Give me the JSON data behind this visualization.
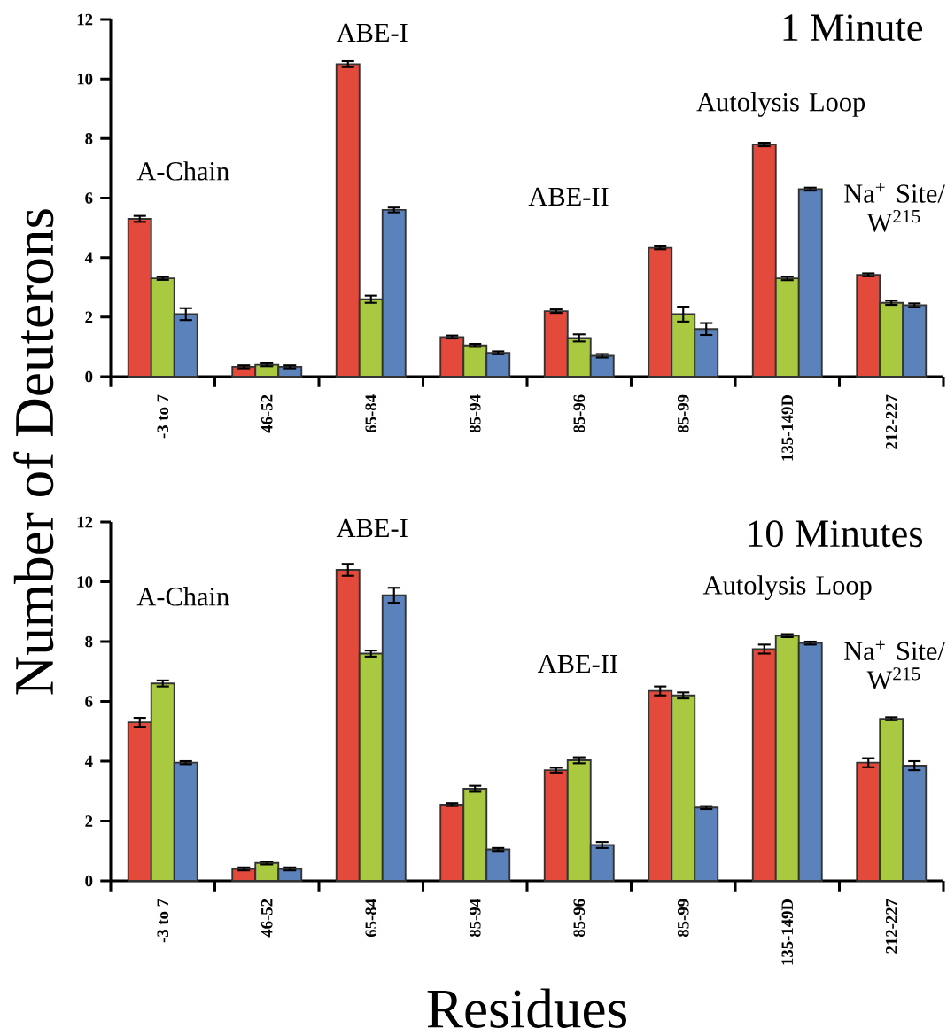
{
  "chart_data": [
    {
      "type": "bar",
      "title": "1 Minute",
      "ylabel": "Number of Deuterons",
      "categories": [
        "-3 to 7",
        "46-52",
        "65-84",
        "85-94",
        "85-96",
        "85-99",
        "135-149D",
        "212-227"
      ],
      "series": [
        {
          "color": "#e34a3b",
          "values": [
            5.3,
            0.33,
            10.5,
            1.33,
            2.2,
            4.33,
            7.8,
            3.42
          ],
          "errors": [
            0.1,
            0.05,
            0.1,
            0.05,
            0.06,
            0.05,
            0.06,
            0.05
          ]
        },
        {
          "color": "#a8c940",
          "values": [
            3.3,
            0.4,
            2.6,
            1.05,
            1.3,
            2.1,
            3.3,
            2.48
          ],
          "errors": [
            0.05,
            0.05,
            0.12,
            0.05,
            0.12,
            0.25,
            0.06,
            0.07
          ]
        },
        {
          "color": "#5b82bb",
          "values": [
            2.1,
            0.33,
            5.6,
            0.8,
            0.7,
            1.6,
            6.3,
            2.4
          ],
          "errors": [
            0.2,
            0.05,
            0.08,
            0.05,
            0.06,
            0.2,
            0.05,
            0.06
          ]
        }
      ],
      "ylim": [
        0,
        12
      ],
      "yticks": [
        0,
        2,
        4,
        6,
        8,
        10,
        12
      ],
      "annotations": [
        "A-Chain",
        "ABE-I",
        "ABE-II",
        "Autolysis Loop",
        "Na$^{+}$ Site/ W$^{215}$"
      ]
    },
    {
      "type": "bar",
      "title": "10 Minutes",
      "xlabel": "Residues",
      "categories": [
        "-3 to 7",
        "46-52",
        "65-84",
        "85-94",
        "85-96",
        "85-99",
        "135-149D",
        "212-227"
      ],
      "series": [
        {
          "color": "#e34a3b",
          "values": [
            5.3,
            0.4,
            10.4,
            2.55,
            3.7,
            6.35,
            7.75,
            3.95
          ],
          "errors": [
            0.15,
            0.05,
            0.2,
            0.05,
            0.08,
            0.15,
            0.15,
            0.15
          ]
        },
        {
          "color": "#a8c940",
          "values": [
            6.6,
            0.6,
            7.6,
            3.08,
            4.03,
            6.2,
            8.2,
            5.42
          ],
          "errors": [
            0.1,
            0.05,
            0.1,
            0.1,
            0.1,
            0.1,
            0.05,
            0.05
          ]
        },
        {
          "color": "#5b82bb",
          "values": [
            3.95,
            0.4,
            9.55,
            1.05,
            1.2,
            2.45,
            7.95,
            3.85
          ],
          "errors": [
            0.05,
            0.05,
            0.25,
            0.05,
            0.1,
            0.05,
            0.05,
            0.15
          ]
        }
      ],
      "ylim": [
        0,
        12
      ],
      "yticks": [
        0,
        2,
        4,
        6,
        8,
        10,
        12
      ],
      "annotations": [
        "A-Chain",
        "ABE-I",
        "ABE-II",
        "Autolysis Loop",
        "Na$^{+}$ Site/ W$^{215}$"
      ]
    }
  ]
}
